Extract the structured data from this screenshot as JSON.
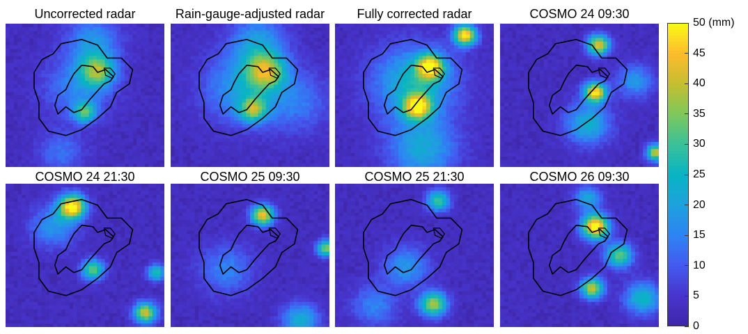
{
  "chart_data": {
    "type": "heatmap",
    "colormap": "parula",
    "color_range": [
      0,
      50
    ],
    "panels": [
      {
        "title": "Uncorrected radar",
        "hotspots": [
          {
            "x": 0.58,
            "y": 0.33,
            "value": 28,
            "spread": 0.08
          },
          {
            "x": 0.5,
            "y": 0.62,
            "value": 26,
            "spread": 0.05
          },
          {
            "x": 0.55,
            "y": 0.12,
            "value": 14,
            "spread": 0.12
          },
          {
            "x": 0.45,
            "y": 0.45,
            "value": 12,
            "spread": 0.15
          },
          {
            "x": 0.35,
            "y": 0.9,
            "value": 10,
            "spread": 0.1
          }
        ]
      },
      {
        "title": "Rain-gauge-adjusted radar",
        "hotspots": [
          {
            "x": 0.6,
            "y": 0.33,
            "value": 30,
            "spread": 0.09
          },
          {
            "x": 0.52,
            "y": 0.6,
            "value": 27,
            "spread": 0.06
          },
          {
            "x": 0.45,
            "y": 0.45,
            "value": 16,
            "spread": 0.17
          },
          {
            "x": 0.55,
            "y": 0.12,
            "value": 15,
            "spread": 0.12
          },
          {
            "x": 0.8,
            "y": 0.55,
            "value": 10,
            "spread": 0.15
          }
        ]
      },
      {
        "title": "Fully corrected radar",
        "hotspots": [
          {
            "x": 0.82,
            "y": 0.08,
            "value": 46,
            "spread": 0.05
          },
          {
            "x": 0.6,
            "y": 0.3,
            "value": 40,
            "spread": 0.06
          },
          {
            "x": 0.52,
            "y": 0.58,
            "value": 38,
            "spread": 0.06
          },
          {
            "x": 0.5,
            "y": 0.42,
            "value": 22,
            "spread": 0.18
          },
          {
            "x": 0.55,
            "y": 0.88,
            "value": 18,
            "spread": 0.15
          }
        ]
      },
      {
        "title": "COSMO 24 09:30",
        "hotspots": [
          {
            "x": 0.6,
            "y": 0.48,
            "value": 45,
            "spread": 0.05
          },
          {
            "x": 0.62,
            "y": 0.15,
            "value": 40,
            "spread": 0.05
          },
          {
            "x": 0.98,
            "y": 0.9,
            "value": 38,
            "spread": 0.04
          },
          {
            "x": 0.55,
            "y": 0.7,
            "value": 20,
            "spread": 0.1
          },
          {
            "x": 0.85,
            "y": 0.4,
            "value": 15,
            "spread": 0.08
          }
        ]
      },
      {
        "title": "COSMO 24 21:30",
        "hotspots": [
          {
            "x": 0.42,
            "y": 0.16,
            "value": 48,
            "spread": 0.06
          },
          {
            "x": 0.55,
            "y": 0.6,
            "value": 30,
            "spread": 0.05
          },
          {
            "x": 0.88,
            "y": 0.9,
            "value": 38,
            "spread": 0.05
          },
          {
            "x": 0.95,
            "y": 0.62,
            "value": 25,
            "spread": 0.04
          },
          {
            "x": 0.3,
            "y": 0.3,
            "value": 15,
            "spread": 0.1
          }
        ]
      },
      {
        "title": "COSMO 25 09:30",
        "hotspots": [
          {
            "x": 0.58,
            "y": 0.22,
            "value": 42,
            "spread": 0.05
          },
          {
            "x": 0.98,
            "y": 0.45,
            "value": 32,
            "spread": 0.04
          },
          {
            "x": 0.82,
            "y": 0.95,
            "value": 20,
            "spread": 0.08
          },
          {
            "x": 0.35,
            "y": 0.6,
            "value": 12,
            "spread": 0.12
          }
        ]
      },
      {
        "title": "COSMO 25 21:30",
        "hotspots": [
          {
            "x": 0.62,
            "y": 0.84,
            "value": 35,
            "spread": 0.06
          },
          {
            "x": 0.65,
            "y": 0.12,
            "value": 28,
            "spread": 0.05
          },
          {
            "x": 0.45,
            "y": 0.58,
            "value": 15,
            "spread": 0.1
          },
          {
            "x": 0.25,
            "y": 0.85,
            "value": 12,
            "spread": 0.1
          }
        ]
      },
      {
        "title": "COSMO 26 09:30",
        "hotspots": [
          {
            "x": 0.6,
            "y": 0.3,
            "value": 50,
            "spread": 0.06
          },
          {
            "x": 0.58,
            "y": 0.73,
            "value": 38,
            "spread": 0.05
          },
          {
            "x": 0.75,
            "y": 0.5,
            "value": 30,
            "spread": 0.06
          },
          {
            "x": 0.9,
            "y": 0.8,
            "value": 22,
            "spread": 0.08
          },
          {
            "x": 0.55,
            "y": 0.1,
            "value": 18,
            "spread": 0.06
          }
        ]
      }
    ],
    "colorbar": {
      "ticks": [
        0,
        5,
        10,
        15,
        20,
        25,
        30,
        35,
        40,
        45,
        50
      ],
      "tick_labels": [
        "0",
        "5",
        "10",
        "15",
        "20",
        "25",
        "30",
        "35",
        "40",
        "45",
        "50 (mm)"
      ]
    }
  }
}
